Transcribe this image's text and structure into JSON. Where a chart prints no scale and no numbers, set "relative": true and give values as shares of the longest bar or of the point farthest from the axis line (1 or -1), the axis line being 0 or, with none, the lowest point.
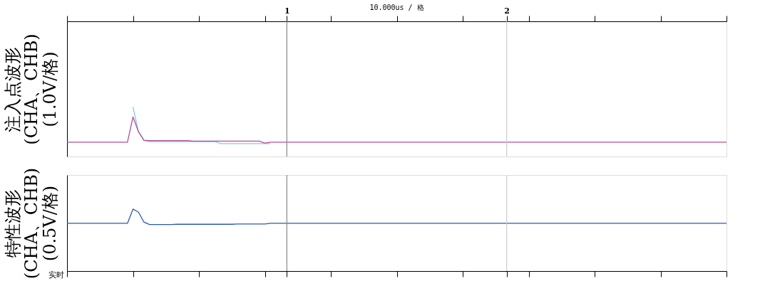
{
  "chart_data": [
    {
      "type": "line",
      "relative": true,
      "ylabel": "注入点波形\n(CHA、CHB)\n(1.0V/格)",
      "categories": [
        null,
        null,
        null,
        null,
        null,
        null,
        null,
        null,
        null,
        null,
        null,
        null,
        null,
        null,
        null,
        null,
        null,
        null,
        null,
        null,
        null,
        null,
        null,
        null,
        null,
        null,
        null,
        null,
        null,
        null,
        null,
        null,
        null,
        null,
        null,
        null,
        null,
        null,
        null,
        null,
        "1",
        null,
        null,
        null,
        null,
        null,
        null,
        null,
        null,
        null,
        null,
        null,
        null,
        null,
        null,
        null,
        null,
        null,
        null,
        null,
        null,
        null,
        null,
        null,
        null,
        null,
        null,
        null,
        null,
        null,
        null,
        null,
        null,
        null,
        null,
        null,
        null,
        null,
        null,
        null,
        "2",
        null,
        null,
        null,
        null,
        null,
        null,
        null,
        null,
        null,
        null,
        null,
        null,
        null,
        null,
        null,
        null,
        null,
        null,
        null,
        null,
        null,
        null,
        null,
        null,
        null,
        null,
        null,
        null,
        null,
        null,
        null,
        null,
        null,
        null,
        null,
        null,
        null,
        null,
        null,
        null
      ],
      "tick_labels": "x",
      "grid": false,
      "legend": false,
      "line_style": "solid",
      "marker": "none",
      "series": [
        {
          "color": "#7fcde6",
          "values": [
            null,
            null,
            null,
            null,
            null,
            null,
            null,
            null,
            null,
            null,
            null,
            null,
            1.0,
            0.5,
            0.32,
            0.3,
            0.3,
            0.3,
            0.3,
            0.3,
            0.3,
            0.3,
            0.3,
            0.3,
            0.3,
            0.3,
            0.3,
            0.3,
            0.26,
            0.26,
            0.26,
            0.26,
            0.26,
            0.26,
            0.26,
            0.26,
            0.26,
            0.26,
            null,
            null,
            null,
            null,
            null,
            null,
            null,
            null,
            null,
            null,
            null,
            null,
            null,
            null,
            null,
            null,
            null,
            null,
            null,
            null,
            null,
            null,
            null,
            null,
            null,
            null,
            null,
            null,
            null,
            null,
            null,
            null,
            null,
            null,
            null,
            null,
            null,
            null,
            null,
            null,
            null,
            null,
            null,
            null,
            null,
            null,
            null,
            null,
            null,
            null,
            null,
            null,
            null,
            null,
            null,
            null,
            null,
            null,
            null,
            null,
            null,
            null,
            null,
            null,
            null,
            null,
            null,
            null,
            null,
            null,
            null,
            null,
            null,
            null,
            null,
            null,
            null,
            null,
            null,
            null,
            null,
            null,
            null
          ]
        },
        {
          "color": "#b0509a",
          "values": [
            0.29,
            0.29,
            0.29,
            0.29,
            0.29,
            0.29,
            0.29,
            0.29,
            0.29,
            0.29,
            0.29,
            0.29,
            0.8,
            0.5,
            0.33,
            0.32,
            0.32,
            0.32,
            0.32,
            0.32,
            0.32,
            0.32,
            0.32,
            0.31,
            0.31,
            0.31,
            0.31,
            0.31,
            0.31,
            0.31,
            0.31,
            0.31,
            0.31,
            0.31,
            0.31,
            0.31,
            0.27,
            0.29,
            0.29,
            0.29,
            0.29,
            0.29,
            0.29,
            0.29,
            0.29,
            0.29,
            0.29,
            0.29,
            0.29,
            0.29,
            0.29,
            0.29,
            0.29,
            0.29,
            0.29,
            0.29,
            0.29,
            0.29,
            0.29,
            0.29,
            0.29,
            0.29,
            0.29,
            0.29,
            0.29,
            0.29,
            0.29,
            0.29,
            0.29,
            0.29,
            0.29,
            0.29,
            0.29,
            0.29,
            0.29,
            0.29,
            0.29,
            0.29,
            0.29,
            0.29,
            0.29,
            0.29,
            0.29,
            0.29,
            0.29,
            0.29,
            0.29,
            0.29,
            0.29,
            0.29,
            0.29,
            0.29,
            0.29,
            0.29,
            0.29,
            0.29,
            0.29,
            0.29,
            0.29,
            0.29,
            0.29,
            0.29,
            0.29,
            0.29,
            0.29,
            0.29,
            0.29,
            0.29,
            0.29,
            0.29,
            0.29,
            0.29,
            0.29,
            0.29,
            0.29,
            0.29,
            0.29,
            0.29,
            0.29,
            0.29,
            0.29
          ]
        }
      ],
      "ref_lines": [
        {
          "axis": "x",
          "value": "1",
          "color": "#888888"
        },
        {
          "axis": "x",
          "value": "2",
          "color": "#cccccc"
        }
      ],
      "annotations": [
        "10.000us / 格"
      ]
    },
    {
      "type": "line",
      "relative": true,
      "ylabel": "特性波形\n(CHA、CHB)\n(0.5V/格)",
      "categories": [
        null,
        null,
        null,
        null,
        null,
        null,
        null,
        null,
        null,
        null,
        null,
        null,
        null,
        null,
        null,
        null,
        null,
        null,
        null,
        null,
        null,
        null,
        null,
        null,
        null,
        null,
        null,
        null,
        null,
        null,
        null,
        null,
        null,
        null,
        null,
        null,
        null,
        null,
        null,
        null,
        "1",
        null,
        null,
        null,
        null,
        null,
        null,
        null,
        null,
        null,
        null,
        null,
        null,
        null,
        null,
        null,
        null,
        null,
        null,
        null,
        null,
        null,
        null,
        null,
        null,
        null,
        null,
        null,
        null,
        null,
        null,
        null,
        null,
        null,
        null,
        null,
        null,
        null,
        null,
        null,
        "2",
        null,
        null,
        null,
        null,
        null,
        null,
        null,
        null,
        null,
        null,
        null,
        null,
        null,
        null,
        null,
        null,
        null,
        null,
        null,
        null,
        null,
        null,
        null,
        null,
        null,
        null,
        null,
        null,
        null,
        null,
        null,
        null,
        null,
        null,
        null,
        null,
        null,
        null,
        null,
        null
      ],
      "tick_labels": false,
      "grid": false,
      "legend": false,
      "line_style": "solid",
      "marker": "none",
      "series": [
        {
          "color": "#2a5aa8",
          "values": [
            0.77,
            0.77,
            0.77,
            0.77,
            0.77,
            0.77,
            0.77,
            0.77,
            0.77,
            0.77,
            0.77,
            0.77,
            1.0,
            0.95,
            0.79,
            0.75,
            0.75,
            0.75,
            0.75,
            0.75,
            0.755,
            0.755,
            0.755,
            0.755,
            0.755,
            0.755,
            0.755,
            0.755,
            0.755,
            0.755,
            0.755,
            0.76,
            0.76,
            0.76,
            0.76,
            0.76,
            0.76,
            0.77,
            0.77,
            0.77,
            0.77,
            0.77,
            0.77,
            0.77,
            0.77,
            0.77,
            0.77,
            0.77,
            0.77,
            0.77,
            0.77,
            0.77,
            0.77,
            0.77,
            0.77,
            0.77,
            0.77,
            0.77,
            0.77,
            0.77,
            0.77,
            0.77,
            0.77,
            0.77,
            0.77,
            0.77,
            0.77,
            0.77,
            0.77,
            0.77,
            0.77,
            0.77,
            0.77,
            0.77,
            0.77,
            0.77,
            0.77,
            0.77,
            0.77,
            0.77,
            0.77,
            0.77,
            0.77,
            0.77,
            0.77,
            0.77,
            0.77,
            0.77,
            0.77,
            0.77,
            0.77,
            0.77,
            0.77,
            0.77,
            0.77,
            0.77,
            0.77,
            0.77,
            0.77,
            0.77,
            0.77,
            0.77,
            0.77,
            0.77,
            0.77,
            0.77,
            0.77,
            0.77,
            0.77,
            0.77,
            0.77,
            0.77,
            0.77,
            0.77,
            0.77,
            0.77,
            0.77,
            0.77,
            0.77,
            0.77,
            0.77
          ]
        }
      ],
      "ref_lines": [
        {
          "axis": "x",
          "value": "1",
          "color": "#888888"
        },
        {
          "axis": "x",
          "value": "2",
          "color": "#cccccc"
        }
      ],
      "annotations": [
        "实时"
      ]
    }
  ]
}
